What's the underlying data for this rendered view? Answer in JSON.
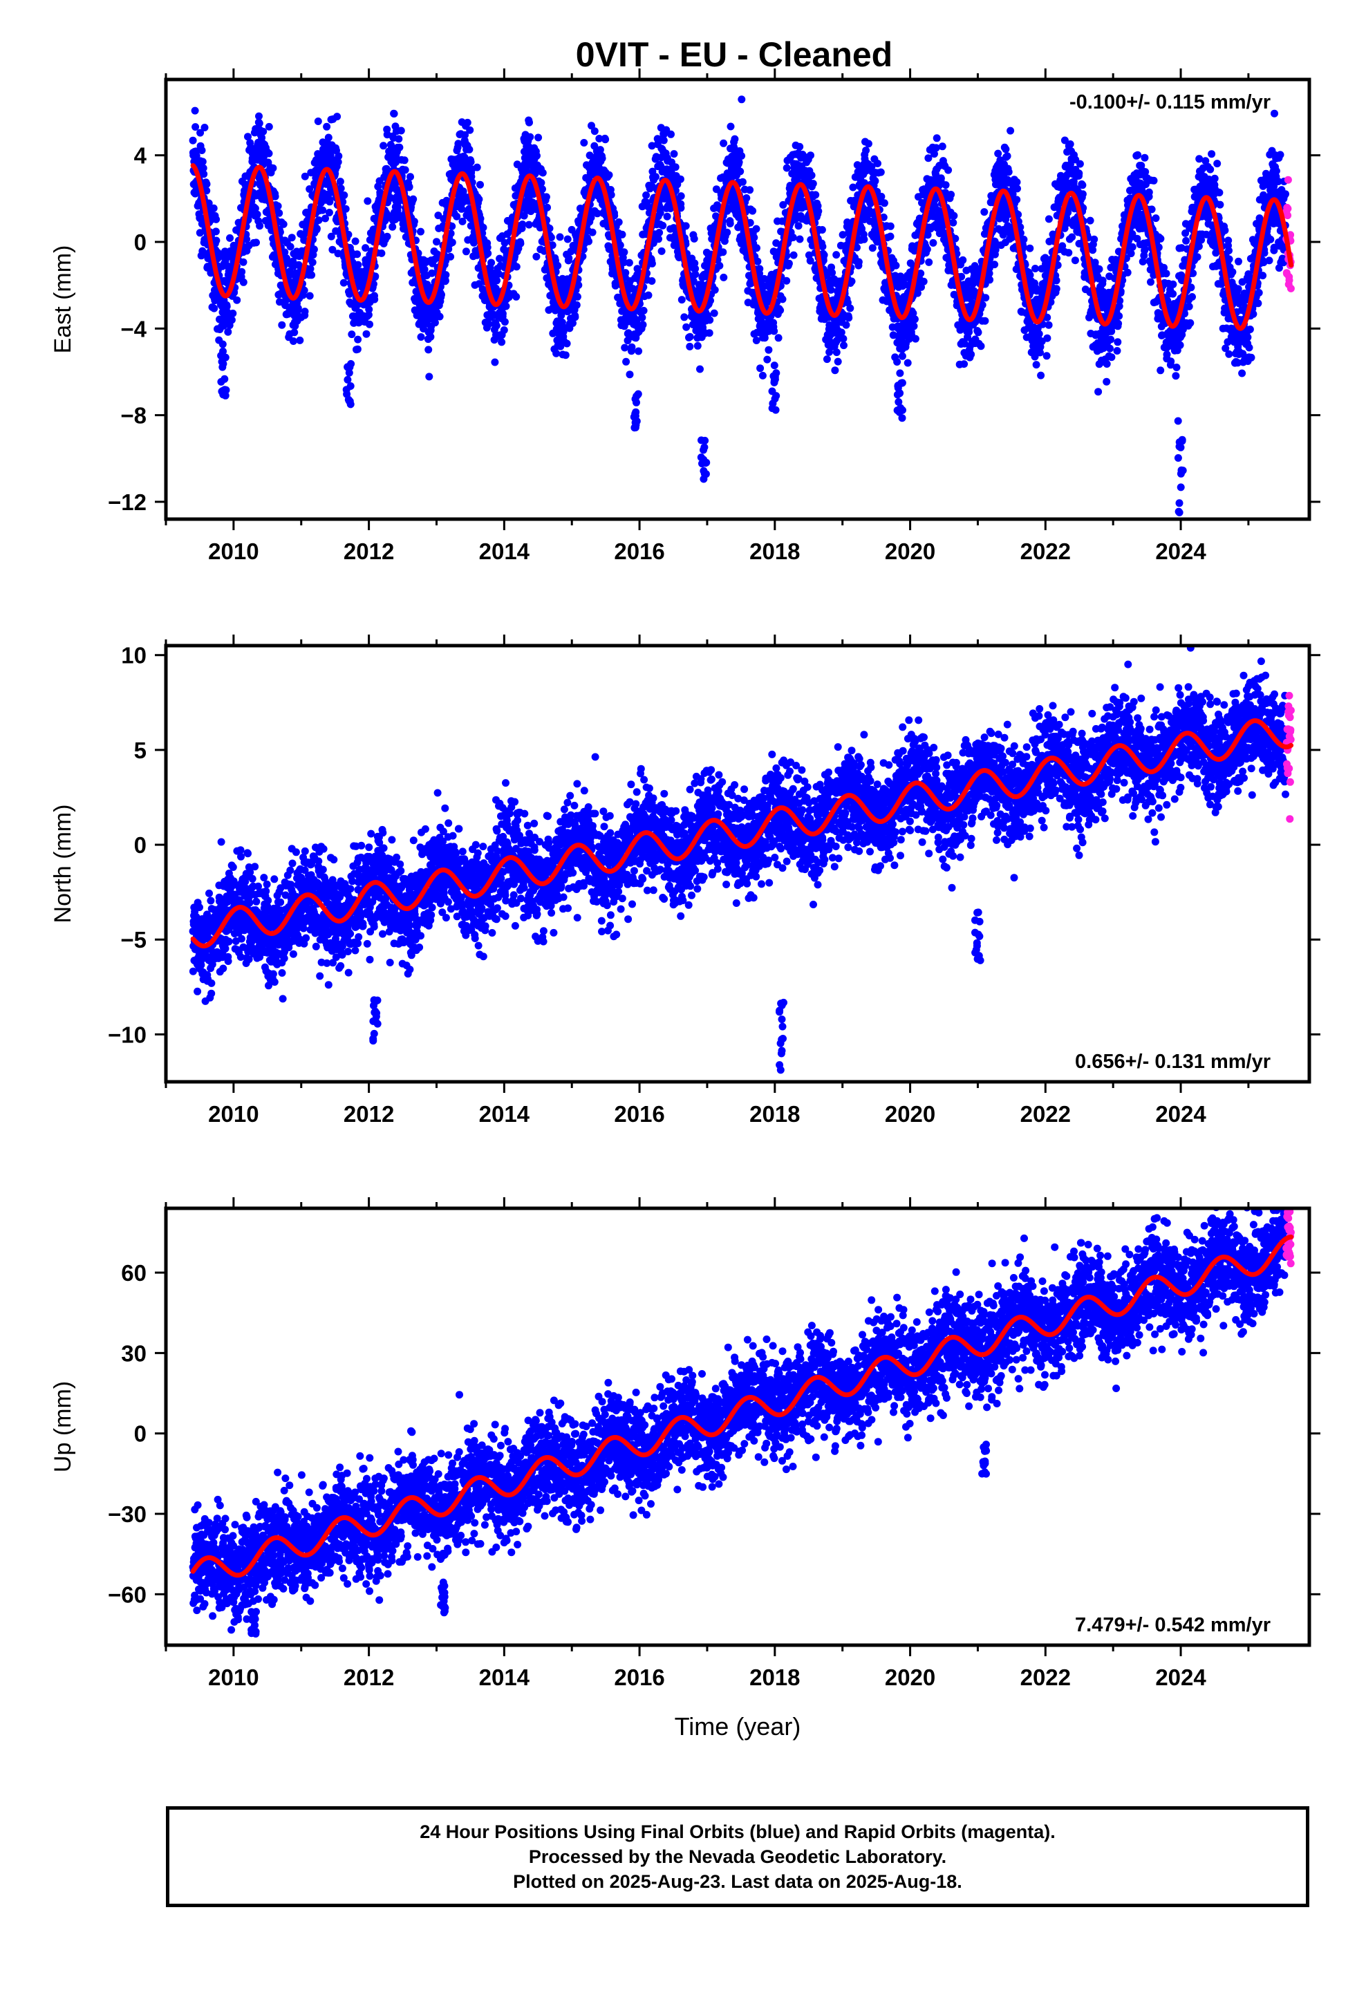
{
  "title": "0VIT  - EU - Cleaned",
  "colors": {
    "final_orbits": "#0000ff",
    "rapid_orbits": "#ff22dd",
    "model_fit": "#ff0000",
    "frame": "#000000"
  },
  "caption": {
    "line1": "24 Hour Positions Using Final Orbits (blue) and Rapid Orbits (magenta).",
    "line2": "Processed by the Nevada Geodetic Laboratory.",
    "line3": "Plotted on 2025-Aug-23. Last data on 2025-Aug-18."
  },
  "chart_data": [
    {
      "type": "scatter",
      "component": "east",
      "ylabel": "East (mm)",
      "xlim": [
        2009.0,
        2025.9
      ],
      "ylim": [
        -12.8,
        7.5
      ],
      "xticks": [
        2010,
        2012,
        2014,
        2016,
        2018,
        2020,
        2022,
        2024
      ],
      "xtick_labels": [
        "2010",
        "2012",
        "2014",
        "2016",
        "2018",
        "2020",
        "2022",
        "2024"
      ],
      "yticks": [
        -12,
        -8,
        -4,
        0,
        4
      ],
      "ytick_labels": [
        "−12",
        "−8",
        "−4",
        "0",
        "4"
      ],
      "rate_label": "-0.100+/- 0.115 mm/yr",
      "rate_position": "top-right",
      "series": [
        {
          "name": "Final Orbits",
          "color": "#0000ff",
          "x_start": 2009.4,
          "x_end": 2025.55,
          "sampling_days": 1
        },
        {
          "name": "Rapid Orbits",
          "color": "#ff22dd",
          "x_start": 2025.56,
          "x_end": 2025.63,
          "sampling_days": 1
        }
      ],
      "model": {
        "name": "fit",
        "color": "#ff0000",
        "t_start": 2009.4,
        "t_end": 2025.63,
        "reference_year": 2009.4,
        "offset_mm": 0.55,
        "rate_mm_per_yr": -0.1,
        "annual_amplitude_mm": [
          3.0,
          3.0
        ],
        "annual_phase_year": 0.38
      },
      "outlier_clusters": [
        {
          "year": 2009.85,
          "min": -7.3,
          "max": -5.0
        },
        {
          "year": 2011.7,
          "min": -7.9,
          "max": -5.5
        },
        {
          "year": 2015.95,
          "min": -8.6,
          "max": -6.8
        },
        {
          "year": 2016.95,
          "min": -11.2,
          "max": -9.0
        },
        {
          "year": 2018.0,
          "min": -7.8,
          "max": -6.0
        },
        {
          "year": 2019.85,
          "min": -8.2,
          "max": -6.5
        },
        {
          "year": 2024.0,
          "min": -12.6,
          "max": -8.2
        }
      ]
    },
    {
      "type": "scatter",
      "component": "north",
      "ylabel": "North (mm)",
      "xlim": [
        2009.0,
        2025.9
      ],
      "ylim": [
        -12.5,
        10.5
      ],
      "xticks": [
        2010,
        2012,
        2014,
        2016,
        2018,
        2020,
        2022,
        2024
      ],
      "xtick_labels": [
        "2010",
        "2012",
        "2014",
        "2016",
        "2018",
        "2020",
        "2022",
        "2024"
      ],
      "yticks": [
        -10,
        -5,
        0,
        5,
        10
      ],
      "ytick_labels": [
        "−10",
        "−5",
        "0",
        "5",
        "10"
      ],
      "rate_label": "0.656+/- 0.131 mm/yr",
      "rate_position": "bottom-right",
      "series": [
        {
          "name": "Final Orbits",
          "color": "#0000ff",
          "x_start": 2009.4,
          "x_end": 2025.55,
          "sampling_days": 1
        },
        {
          "name": "Rapid Orbits",
          "color": "#ff22dd",
          "x_start": 2025.56,
          "x_end": 2025.63,
          "sampling_days": 1
        }
      ],
      "model": {
        "name": "fit",
        "color": "#ff0000",
        "t_start": 2009.4,
        "t_end": 2025.63,
        "reference_year": 2009.4,
        "offset_mm": -4.6,
        "rate_mm_per_yr": 0.656,
        "annual_amplitude_mm": [
          0.85,
          0.85
        ],
        "annual_phase_year": 0.08
      },
      "outlier_clusters": [
        {
          "year": 2012.1,
          "min": -10.4,
          "max": -8.0
        },
        {
          "year": 2018.1,
          "min": -12.2,
          "max": -8.0
        },
        {
          "year": 2021.0,
          "min": -7.2,
          "max": -3.0
        }
      ]
    },
    {
      "type": "scatter",
      "component": "up",
      "ylabel": "Up (mm)",
      "xlim": [
        2009.0,
        2025.9
      ],
      "ylim": [
        -79,
        84
      ],
      "xticks": [
        2010,
        2012,
        2014,
        2016,
        2018,
        2020,
        2022,
        2024
      ],
      "xtick_labels": [
        "2010",
        "2012",
        "2014",
        "2016",
        "2018",
        "2020",
        "2022",
        "2024"
      ],
      "yticks": [
        -60,
        -30,
        0,
        30,
        60
      ],
      "ytick_labels": [
        "−60",
        "−30",
        "0",
        "30",
        "60"
      ],
      "xlabel": "Time (year)",
      "rate_label": "7.479+/- 0.542 mm/yr",
      "rate_position": "bottom-right",
      "series": [
        {
          "name": "Final Orbits",
          "color": "#0000ff",
          "x_start": 2009.4,
          "x_end": 2025.55,
          "sampling_days": 1
        },
        {
          "name": "Rapid Orbits",
          "color": "#ff22dd",
          "x_start": 2025.56,
          "x_end": 2025.63,
          "sampling_days": 1
        }
      ],
      "model": {
        "name": "fit",
        "color": "#ff0000",
        "t_start": 2009.4,
        "t_end": 2025.63,
        "reference_year": 2009.4,
        "offset_mm": -53.0,
        "rate_mm_per_yr": 7.479,
        "annual_amplitude_mm": [
          5.0,
          5.0
        ],
        "annual_phase_year": 0.6
      },
      "outlier_clusters": [
        {
          "year": 2010.3,
          "min": -75.0,
          "max": -66.0
        },
        {
          "year": 2013.1,
          "min": -67.0,
          "max": -55.0
        },
        {
          "year": 2021.1,
          "min": -17.0,
          "max": -4.0
        }
      ]
    }
  ]
}
